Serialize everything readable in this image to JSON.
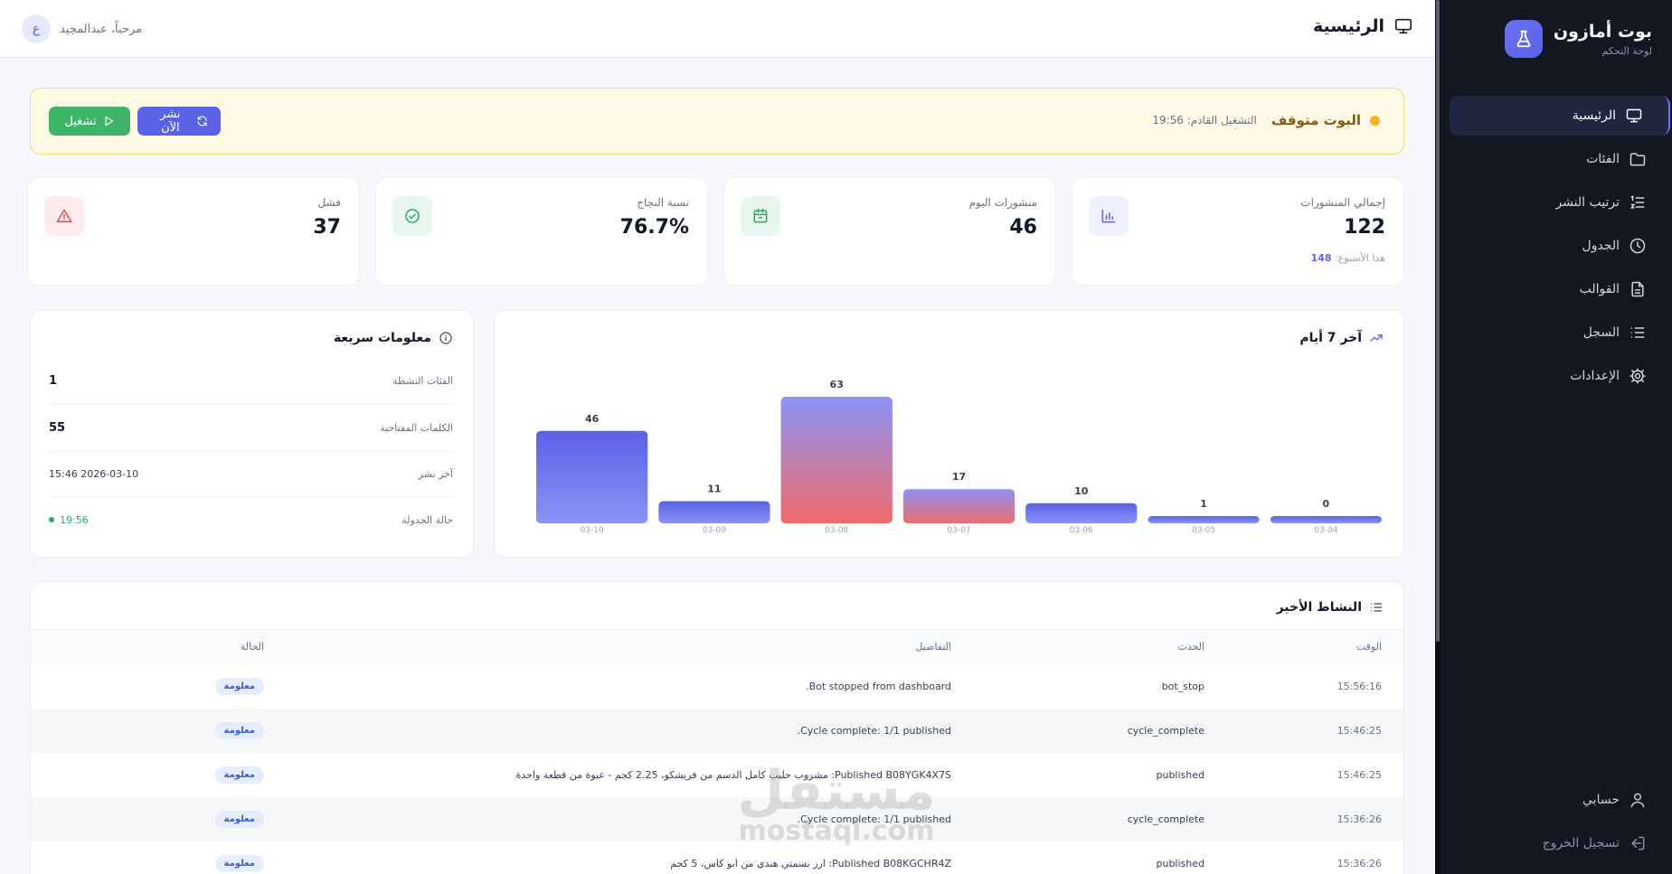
{
  "sidebar": {
    "brand_title": "بوت أمازون",
    "brand_subtitle": "لوحة التحكم",
    "items": [
      {
        "label": "الرئيسية",
        "icon": "monitor-icon",
        "active": true
      },
      {
        "label": "الفئات",
        "icon": "folder-icon"
      },
      {
        "label": "ترتيب النشر",
        "icon": "list-order-icon"
      },
      {
        "label": "الجدول",
        "icon": "clock-icon"
      },
      {
        "label": "القوالب",
        "icon": "file-icon"
      },
      {
        "label": "السجل",
        "icon": "list-icon"
      },
      {
        "label": "الإعدادات",
        "icon": "gear-icon"
      }
    ],
    "bottom": [
      {
        "label": "حسابي",
        "icon": "user-icon"
      },
      {
        "label": "تسجيل الخروج",
        "icon": "logout-icon"
      }
    ]
  },
  "header": {
    "title": "الرئيسية",
    "welcome": "مرحباً، عبدالمجيد",
    "avatar_initial": "ع"
  },
  "banner": {
    "status": "البوت متوقف",
    "next_run": "التشغيل القادم: 19:56",
    "run_label": "تشغيل",
    "publish_label": "نشر الآن"
  },
  "stats": [
    {
      "label": "إجمالي المنشورات",
      "value": "122",
      "sub_label": "هذا الأسبوع:",
      "sub_value": "148",
      "icon": "bar-chart-icon",
      "color": "#5a62e6"
    },
    {
      "label": "منشورات اليوم",
      "value": "46",
      "icon": "calendar-icon",
      "color": "#2fa866"
    },
    {
      "label": "نسبة النجاح",
      "value": "76.7%",
      "icon": "check-circle-icon",
      "color": "#2fa866"
    },
    {
      "label": "فشل",
      "value": "37",
      "icon": "warning-icon",
      "color": "#e05252"
    }
  ],
  "chart": {
    "title": "آخر 7 أيام"
  },
  "chart_data": {
    "type": "bar",
    "categories": [
      "03-10",
      "03-09",
      "03-08",
      "03-07",
      "03-06",
      "03-05",
      "03-04"
    ],
    "values": [
      46,
      11,
      63,
      17,
      10,
      1,
      0
    ],
    "title": "آخر 7 أيام",
    "xlabel": "",
    "ylabel": "",
    "grid": false,
    "colors": {
      "primary": "#5a62e6",
      "secondary": "#8b93f5",
      "accent": "#f06b6b"
    }
  },
  "quick_info": {
    "title": "معلومات سريعة",
    "rows": [
      {
        "label": "الفئات النشطة",
        "value": "1"
      },
      {
        "label": "الكلمات المفتاحية",
        "value": "55"
      },
      {
        "label": "آخر نشر",
        "value": "2026-03-10 15:46"
      },
      {
        "label": "حالة الجدولة",
        "value": "19:56"
      }
    ]
  },
  "activity": {
    "title": "النشاط الأخير",
    "columns": [
      "الوقت",
      "الحدث",
      "التفاصيل",
      "الحالة"
    ],
    "rows": [
      {
        "time": "15:56:16",
        "event": "bot_stop",
        "details": "Bot stopped from dashboard.",
        "status": "معلومة"
      },
      {
        "time": "15:46:25",
        "event": "cycle_complete",
        "details": "Cycle complete: 1/1 published.",
        "status": "معلومة"
      },
      {
        "time": "15:46:25",
        "event": "published",
        "details": "Published B08YGK4X7S: مشروب حليب كامل الدسم من فريشكو، 2.25 كجم - عبوة من قطعة واحدة",
        "status": "معلومة"
      },
      {
        "time": "15:36:26",
        "event": "cycle_complete",
        "details": "Cycle complete: 1/1 published.",
        "status": "معلومة"
      },
      {
        "time": "15:36:26",
        "event": "published",
        "details": "Published B08KGCHR4Z: ارز بسمتي هندي من ابو كاس، 5 كجم",
        "status": "معلومة"
      }
    ]
  },
  "watermark": {
    "line1": "مستقل",
    "line2": "mostaql.com"
  }
}
